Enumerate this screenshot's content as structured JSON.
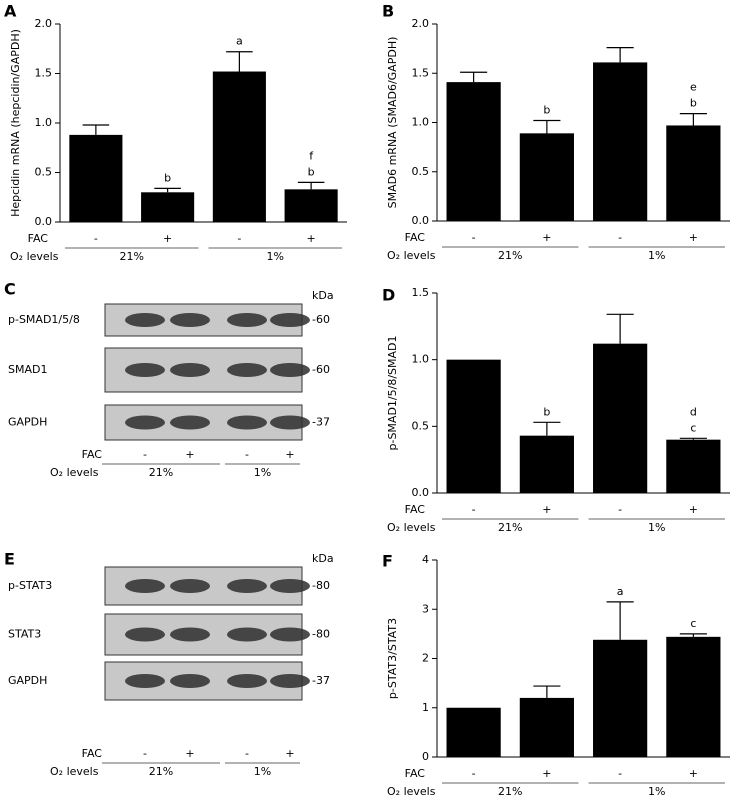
{
  "chart_data": [
    {
      "type": "bar",
      "panel": "A",
      "y_label": "Hepcidin mRNA (hepcidin/GAPDH)",
      "categories": [
        "-",
        "+",
        "-",
        "+"
      ],
      "row_label": "FAC",
      "group_row_label": "O₂ levels",
      "groups": [
        "21%",
        "1%"
      ],
      "values": [
        0.88,
        0.3,
        1.52,
        0.33
      ],
      "errors": [
        0.1,
        0.04,
        0.2,
        0.07
      ],
      "annotations": [
        null,
        [
          "b"
        ],
        [
          "a"
        ],
        [
          "f",
          "b"
        ]
      ],
      "color": "#000000",
      "ylim": [
        0,
        2
      ],
      "yticks": [
        {
          "value": 0,
          "label": "0.0"
        },
        0.5,
        {
          "value": 1,
          "label": "1.0"
        },
        1.5,
        {
          "value": 2,
          "label": "2.0"
        }
      ]
    },
    {
      "type": "bar",
      "panel": "B",
      "y_label": "SMAD6 mRNA (SMAD6/GAPDH)",
      "categories": [
        "-",
        "+",
        "-",
        "+"
      ],
      "row_label": "FAC",
      "group_row_label": "O₂ levels",
      "groups": [
        "21%",
        "1%"
      ],
      "values": [
        1.41,
        0.89,
        1.61,
        0.97
      ],
      "errors": [
        0.1,
        0.13,
        0.15,
        0.12
      ],
      "annotations": [
        null,
        [
          "b"
        ],
        null,
        [
          "e",
          "b"
        ]
      ],
      "color": "#000000",
      "ylim": [
        0,
        2
      ],
      "yticks": [
        {
          "value": 0,
          "label": "0.0"
        },
        0.5,
        {
          "value": 1,
          "label": "1.0"
        },
        1.5,
        {
          "value": 2,
          "label": "2.0"
        }
      ]
    },
    {
      "type": "bar",
      "panel": "D",
      "y_label": "p-SMAD1/5/8/SMAD1",
      "categories": [
        "-",
        "+",
        "-",
        "+"
      ],
      "row_label": "FAC",
      "group_row_label": "O₂ levels",
      "groups": [
        "21%",
        "1%"
      ],
      "values": [
        1.0,
        0.43,
        1.12,
        0.4
      ],
      "errors": [
        null,
        0.1,
        0.22,
        0.01
      ],
      "annotations": [
        null,
        [
          "b"
        ],
        null,
        [
          "d",
          "c"
        ]
      ],
      "color": "#000000",
      "ylim": [
        0,
        1.5
      ],
      "yticks": [
        {
          "value": 0,
          "label": "0.0"
        },
        0.5,
        {
          "value": 1,
          "label": "1.0"
        },
        1.5
      ]
    },
    {
      "type": "bar",
      "panel": "F",
      "y_label": "p-STAT3/STAT3",
      "categories": [
        "-",
        "+",
        "-",
        "+"
      ],
      "row_label": "FAC",
      "group_row_label": "O₂ levels",
      "groups": [
        "21%",
        "1%"
      ],
      "values": [
        1.0,
        1.2,
        2.38,
        2.44
      ],
      "errors": [
        null,
        0.24,
        0.77,
        0.06
      ],
      "annotations": [
        null,
        null,
        [
          "a"
        ],
        [
          "c"
        ]
      ],
      "color": "#000000",
      "ylim": [
        0,
        4
      ],
      "yticks": [
        0,
        1,
        2,
        3,
        4
      ]
    }
  ],
  "blots": [
    {
      "panel": "C",
      "unit": "kDa",
      "rows": [
        {
          "label": "p-SMAD1/5/8",
          "size": "-60"
        },
        {
          "label": "SMAD1",
          "size": "-60"
        },
        {
          "label": "GAPDH",
          "size": "-37"
        }
      ],
      "lanes": [
        "-",
        "+",
        "-",
        "+"
      ],
      "row_label": "FAC",
      "group_row_label": "O₂ levels",
      "groups": [
        "21%",
        "1%"
      ]
    },
    {
      "panel": "E",
      "unit": "kDa",
      "rows": [
        {
          "label": "p-STAT3",
          "size": "-80"
        },
        {
          "label": "STAT3",
          "size": "-80"
        },
        {
          "label": "GAPDH",
          "size": "-37"
        }
      ],
      "lanes": [
        "-",
        "+",
        "-",
        "+"
      ],
      "row_label": "FAC",
      "group_row_label": "O₂ levels",
      "groups": [
        "21%",
        "1%"
      ]
    }
  ]
}
